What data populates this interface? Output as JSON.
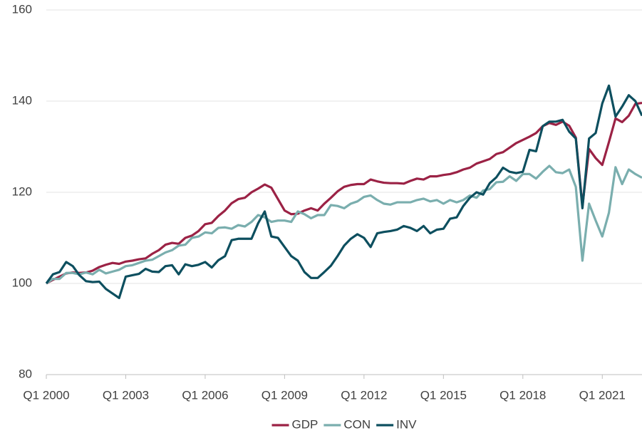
{
  "chart_data": {
    "type": "line",
    "categories": [
      "Q1 2000",
      null,
      null,
      null,
      null,
      null,
      null,
      null,
      null,
      null,
      null,
      null,
      "Q1 2003",
      null,
      null,
      null,
      null,
      null,
      null,
      null,
      null,
      null,
      null,
      null,
      "Q1 2006",
      null,
      null,
      null,
      null,
      null,
      null,
      null,
      null,
      null,
      null,
      null,
      "Q1 2009",
      null,
      null,
      null,
      null,
      null,
      null,
      null,
      null,
      null,
      null,
      null,
      "Q1 2012",
      null,
      null,
      null,
      null,
      null,
      null,
      null,
      null,
      null,
      null,
      null,
      "Q1 2015",
      null,
      null,
      null,
      null,
      null,
      null,
      null,
      null,
      null,
      null,
      null,
      "Q1 2018",
      null,
      null,
      null,
      null,
      null,
      null,
      null,
      null,
      null,
      null,
      null,
      "Q1 2021",
      null,
      null,
      null,
      null,
      null,
      null
    ],
    "series": [
      {
        "name": "GDP",
        "color": "#9b2245",
        "values": [
          100,
          100.8,
          101.5,
          102.2,
          102.4,
          102.3,
          102.4,
          102.8,
          103.6,
          104.1,
          104.5,
          104.3,
          104.8,
          105,
          105.3,
          105.5,
          106.5,
          107.3,
          108.5,
          108.9,
          108.7,
          110,
          110.5,
          111.5,
          113,
          113.3,
          114.8,
          116,
          117.6,
          118.5,
          118.8,
          120,
          120.8,
          121.7,
          121,
          118.5,
          116,
          115.2,
          115.3,
          116,
          116.5,
          116,
          117.5,
          118.8,
          120.2,
          121.2,
          121.6,
          121.8,
          121.8,
          122.8,
          122.4,
          122.1,
          122,
          122,
          121.9,
          122.5,
          123,
          122.8,
          123.5,
          123.5,
          123.8,
          124,
          124.4,
          125,
          125.4,
          126.3,
          126.8,
          127.3,
          128.4,
          128.8,
          129.8,
          130.8,
          131.5,
          132.2,
          133,
          134.5,
          135.2,
          134.8,
          135.5,
          134.6,
          132,
          117,
          129.5,
          127.5,
          126,
          131,
          136.2,
          135.4,
          136.8,
          139.4,
          139.6
        ]
      },
      {
        "name": "CON",
        "color": "#7aaeae",
        "values": [
          100,
          101,
          101,
          102.3,
          102.3,
          102,
          102.4,
          102,
          103,
          102.2,
          102.6,
          103,
          103.8,
          104,
          104.5,
          105,
          105.2,
          106,
          106.8,
          107.3,
          108.3,
          108.5,
          110,
          110.3,
          111.2,
          111,
          112.2,
          112.3,
          112,
          112.8,
          112.5,
          113.5,
          115,
          114.5,
          113.5,
          113.8,
          113.8,
          113.5,
          115.8,
          115.2,
          114.3,
          115,
          115,
          117.2,
          117,
          116.5,
          117.5,
          118,
          119,
          119.3,
          118.3,
          117.5,
          117.3,
          117.8,
          117.8,
          117.8,
          118.3,
          118.6,
          118,
          118.3,
          117.5,
          118.3,
          117.8,
          118.3,
          119.3,
          118.8,
          120.4,
          120.7,
          122.2,
          122.3,
          123.5,
          122.5,
          124,
          124,
          123,
          124.5,
          125.8,
          124.4,
          124.2,
          125,
          121.2,
          105,
          117.5,
          113.8,
          110.3,
          115.5,
          125.5,
          121.8,
          125,
          124,
          123.2
        ]
      },
      {
        "name": "INV",
        "color": "#0d4f5f",
        "values": [
          100,
          102,
          102.5,
          104.7,
          103.8,
          101.8,
          100.5,
          100.3,
          100.4,
          98.8,
          97.8,
          96.8,
          101.5,
          101.8,
          102.1,
          103.2,
          102.6,
          102.5,
          103.8,
          104,
          102,
          104.2,
          103.8,
          104.1,
          104.7,
          103.5,
          105.1,
          106,
          109.5,
          109.8,
          109.8,
          109.8,
          113.2,
          115.8,
          110.3,
          110,
          108,
          106,
          105,
          102.5,
          101.2,
          101.2,
          102.5,
          103.9,
          106,
          108.3,
          109.8,
          110.8,
          110,
          108,
          111,
          111.3,
          111.5,
          111.8,
          112.6,
          112.2,
          111.5,
          112.6,
          111,
          111.8,
          112,
          114.2,
          114.5,
          117,
          118.8,
          120,
          119.5,
          122,
          123.3,
          125.4,
          124.5,
          124.2,
          124.5,
          129.3,
          129,
          134.5,
          135.5,
          135.5,
          135.9,
          133.3,
          131.8,
          116.5,
          131.8,
          133,
          139.5,
          143.4,
          136.6,
          138.8,
          141.3,
          140,
          136.8
        ]
      }
    ],
    "ylim": [
      80,
      160
    ],
    "yticks": [
      80,
      100,
      120,
      140,
      160
    ],
    "grid": true,
    "legend": "bottom"
  }
}
